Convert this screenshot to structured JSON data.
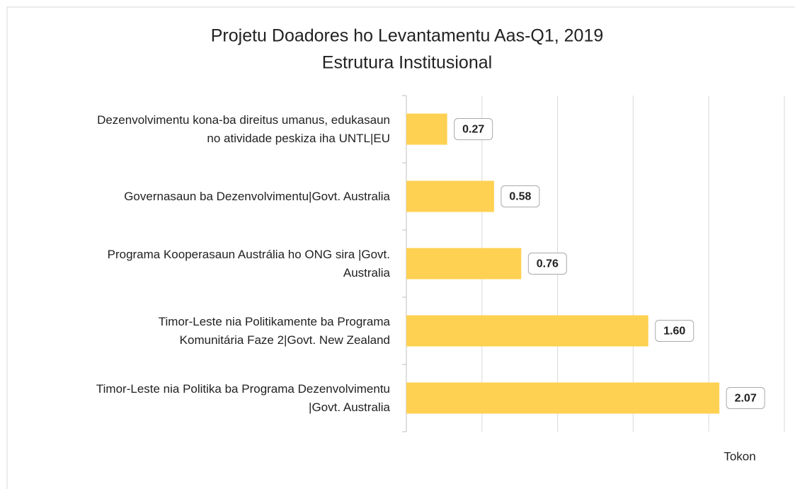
{
  "chart_data": {
    "type": "bar",
    "orientation": "horizontal",
    "title": "Projetu Doadores ho Levantamentu Aas-Q1, 2019",
    "subtitle": "Estrutura Institusional",
    "x_label": "Tokon",
    "categories": [
      "Dezenvolvimentu kona-ba direitus umanus, edukasaun\nno atividade peskiza  iha UNTL|EU",
      "Governasaun ba Dezenvolvimentu|Govt.  Australia",
      "Programa Kooperasaun  Austrália  ho ONG sira  |Govt.\nAustralia",
      "Timor-Leste nia Politikamente ba Programa\nKomunitária  Faze 2|Govt.  New Zealand",
      "Timor-Leste nia Politika ba Programa Dezenvolvimentu\n|Govt.  Australia"
    ],
    "values": [
      0.27,
      0.58,
      0.76,
      1.6,
      2.07
    ],
    "value_labels": [
      "0.27",
      "0.58",
      "0.76",
      "1.60",
      "2.07"
    ],
    "color": "#ffd152",
    "xlim": [
      0,
      2.5
    ],
    "xticks": [
      0,
      0.5,
      1,
      1.5,
      2,
      2.5
    ],
    "grid": true
  }
}
